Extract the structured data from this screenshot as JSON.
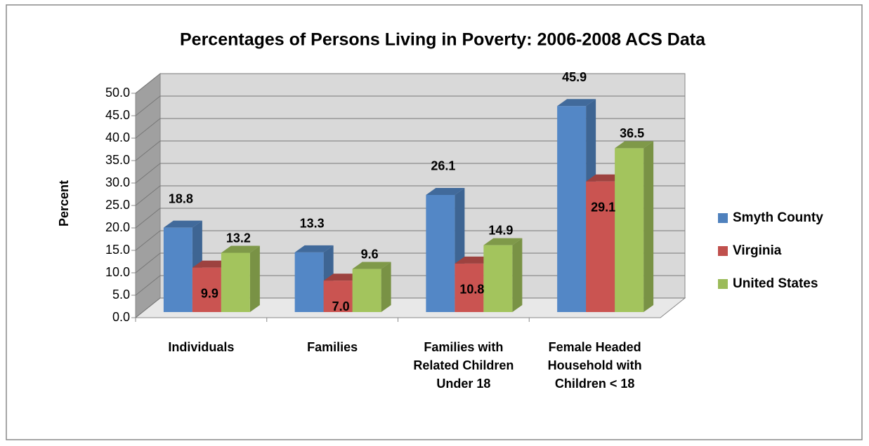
{
  "chart_data": {
    "type": "bar3d",
    "title": "Percentages of Persons Living in Poverty: 2006-2008 ACS Data",
    "y_label": "Percent",
    "categories": [
      "Individuals",
      "Families",
      "Families with Related Children Under 18",
      "Female Headed Household with Children < 18"
    ],
    "series": [
      {
        "name": "Smyth County",
        "color": "#4f81bd",
        "values": [
          18.8,
          13.3,
          26.1,
          45.9
        ]
      },
      {
        "name": "Virginia",
        "color": "#c0504d",
        "values": [
          9.9,
          7.0,
          10.8,
          29.1
        ],
        "value_labels": [
          "9.9",
          "7.0",
          "10.8",
          "29.1"
        ]
      },
      {
        "name": "United States",
        "color": "#9bbb59",
        "values": [
          13.2,
          9.6,
          14.9,
          36.5
        ]
      }
    ],
    "ylim": [
      0,
      50
    ],
    "yticks": [
      {
        "value": 0,
        "label": "0.0"
      },
      {
        "value": 5,
        "label": "5.0"
      },
      {
        "value": 10,
        "label": "10.0"
      },
      {
        "value": 15,
        "label": "15.0"
      },
      {
        "value": 20,
        "label": "20.0"
      },
      {
        "value": 25,
        "label": "25.0"
      },
      {
        "value": 30,
        "label": "30.0"
      },
      {
        "value": 35,
        "label": "35.0"
      },
      {
        "value": 40,
        "label": "40.0"
      },
      {
        "value": 45,
        "label": "45.0"
      },
      {
        "value": 50,
        "label": "50.0"
      }
    ],
    "grid": true,
    "legend": "right"
  }
}
